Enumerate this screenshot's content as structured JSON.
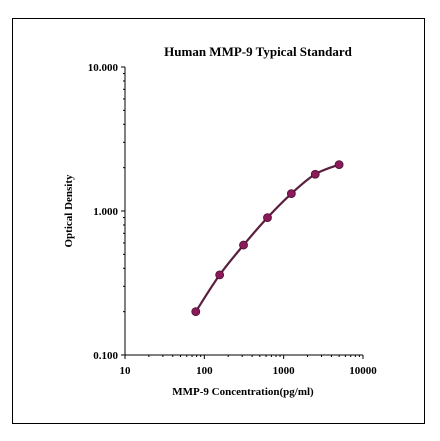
{
  "chart_data": {
    "type": "line",
    "title": "Human  MMP-9 Typical Standard",
    "xlabel": "MMP-9  Concentration(pg/ml)",
    "ylabel": "Optical Density",
    "x_scale": "log",
    "y_scale": "log",
    "xlim": [
      10,
      10000
    ],
    "ylim": [
      0.1,
      10
    ],
    "x_ticks": [
      "10",
      "100",
      "1000",
      "10000"
    ],
    "y_ticks": [
      "0.100",
      "1.000",
      "10.000"
    ],
    "grid": false,
    "series": [
      {
        "x": [
          78,
          156,
          312,
          625,
          1250,
          2500,
          5000
        ],
        "y": [
          0.2,
          0.36,
          0.58,
          0.9,
          1.32,
          1.8,
          2.1
        ],
        "color": "#5a1e3e",
        "marker_color": "#8b1a5a"
      }
    ]
  }
}
